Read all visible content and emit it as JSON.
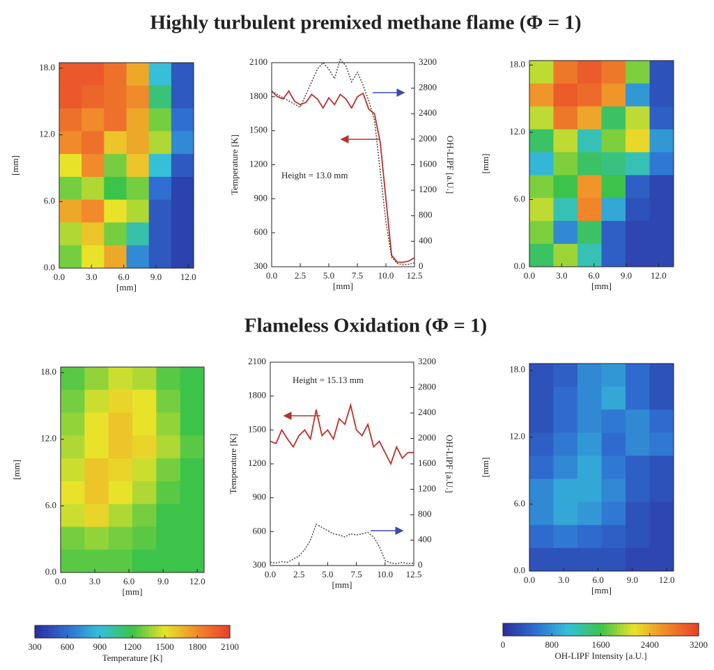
{
  "headings": [
    "Highly turbulent premixed methane flame (Φ = 1)",
    "Flameless Oxidation (Φ = 1)"
  ],
  "chart_data": [
    {
      "type": "heatmap",
      "xlabel": "[mm]",
      "ylabel": "[mm]",
      "xlim": [
        0,
        12.5
      ],
      "ylim": [
        0,
        18.5
      ],
      "xticks": [
        {
          "value": 0,
          "label": "0.0"
        },
        {
          "value": 3,
          "label": "3.0"
        },
        {
          "value": 6,
          "label": "6.0"
        },
        {
          "value": 9,
          "label": "9.0"
        },
        {
          "value": 12,
          "label": "12.0"
        }
      ],
      "yticks": [
        {
          "value": 0,
          "label": "0.0"
        },
        {
          "value": 6,
          "label": "6.0"
        },
        {
          "value": 12,
          "label": "12.0"
        },
        {
          "value": 18,
          "label": "18.0"
        }
      ],
      "clim": [
        300,
        2100
      ],
      "colors": [
        "#2b2d9c",
        "#2f6fd1",
        "#35c0d8",
        "#3cc34a",
        "#e8e32a",
        "#f08a2a",
        "#e8402a"
      ],
      "z": [
        [
          2000,
          2000,
          1900,
          1700,
          900,
          500
        ],
        [
          2000,
          1950,
          1900,
          1800,
          1100,
          500
        ],
        [
          1900,
          1800,
          1900,
          1700,
          1300,
          600
        ],
        [
          1800,
          1900,
          1600,
          1700,
          1400,
          700
        ],
        [
          1500,
          1800,
          1300,
          1600,
          900,
          500
        ],
        [
          1300,
          1400,
          1200,
          1300,
          600,
          400
        ],
        [
          1700,
          1800,
          1500,
          1400,
          500,
          400
        ],
        [
          1400,
          1600,
          1300,
          1000,
          500,
          400
        ],
        [
          1300,
          1500,
          1700,
          700,
          500,
          400
        ]
      ]
    },
    {
      "type": "line",
      "xlabel": "[mm]",
      "ylabel": "Temperature [K]",
      "y2label": "OH-LIPF [a.U.]",
      "annotation": "Height = 13.0 mm",
      "xlim": [
        0,
        12.5
      ],
      "ylim": [
        300,
        2100
      ],
      "y2lim": [
        0,
        3200
      ],
      "xticks": [
        {
          "value": 0,
          "label": "0.0"
        },
        {
          "value": 2.5,
          "label": "2.5"
        },
        {
          "value": 5,
          "label": "5.0"
        },
        {
          "value": 7.5,
          "label": "7.5"
        },
        {
          "value": 10,
          "label": "10.0"
        },
        {
          "value": 12.5,
          "label": "12.5"
        }
      ],
      "yticks": [
        300,
        600,
        900,
        1200,
        1500,
        1800,
        2100
      ],
      "y2ticks": [
        0,
        400,
        800,
        1200,
        1600,
        2000,
        2400,
        2800,
        3200
      ],
      "x": [
        0,
        0.5,
        1,
        1.5,
        2,
        2.5,
        3,
        3.5,
        4,
        4.5,
        5,
        5.5,
        6,
        6.5,
        7,
        7.5,
        8,
        8.5,
        9,
        9.5,
        10,
        10.5,
        11,
        11.5,
        12,
        12.5
      ],
      "series": [
        {
          "color": "#b8322a",
          "values": [
            1850,
            1800,
            1780,
            1850,
            1760,
            1730,
            1750,
            1820,
            1780,
            1700,
            1790,
            1730,
            1820,
            1780,
            1700,
            1800,
            1830,
            1690,
            1650,
            1400,
            900,
            400,
            340,
            340,
            350,
            380
          ]
        },
        {
          "color": "#444444",
          "dash": true,
          "axis": "y2",
          "values": [
            2750,
            2700,
            2650,
            2600,
            2550,
            2500,
            2700,
            2900,
            3100,
            3200,
            3100,
            2950,
            3250,
            3150,
            2900,
            3050,
            2850,
            2600,
            2300,
            1500,
            700,
            150,
            50,
            30,
            40,
            60
          ]
        }
      ]
    },
    {
      "type": "heatmap",
      "xlabel": "[mm]",
      "ylabel": "[mm]",
      "xlim": [
        0,
        13.4
      ],
      "ylim": [
        0,
        18.4
      ],
      "xticks": [
        {
          "value": 0,
          "label": "0.0"
        },
        {
          "value": 3,
          "label": "3.0"
        },
        {
          "value": 6,
          "label": "6.0"
        },
        {
          "value": 9,
          "label": "9.0"
        },
        {
          "value": 12,
          "label": "12.0"
        }
      ],
      "yticks": [
        {
          "value": 0,
          "label": "0.0"
        },
        {
          "value": 6,
          "label": "6.0"
        },
        {
          "value": 12,
          "label": "12.0"
        },
        {
          "value": 18,
          "label": "18.0"
        }
      ],
      "clim": [
        0,
        3200
      ],
      "colors": [
        "#2b2d9c",
        "#2f6fd1",
        "#35c0d8",
        "#3cc34a",
        "#e8e32a",
        "#f08a2a",
        "#e8402a"
      ],
      "z": [
        [
          2000,
          2800,
          3000,
          2800,
          1800,
          300
        ],
        [
          2600,
          3000,
          2900,
          2600,
          800,
          300
        ],
        [
          2000,
          2800,
          2500,
          1500,
          2000,
          400
        ],
        [
          1500,
          2000,
          1200,
          1800,
          2200,
          800
        ],
        [
          1000,
          1800,
          1500,
          1400,
          1200,
          600
        ],
        [
          1800,
          1600,
          2600,
          1600,
          400,
          200
        ],
        [
          2000,
          1200,
          2700,
          900,
          300,
          200
        ],
        [
          1800,
          700,
          1500,
          400,
          200,
          200
        ],
        [
          1500,
          1900,
          1200,
          400,
          200,
          200
        ]
      ]
    },
    {
      "type": "heatmap",
      "xlabel": "[mm]",
      "ylabel": "[mm]",
      "xlim": [
        0,
        12.6
      ],
      "ylim": [
        0,
        18.5
      ],
      "xticks": [
        {
          "value": 0,
          "label": "0.0"
        },
        {
          "value": 3,
          "label": "3.0"
        },
        {
          "value": 6,
          "label": "6.0"
        },
        {
          "value": 9,
          "label": "9.0"
        },
        {
          "value": 12,
          "label": "12.0"
        }
      ],
      "yticks": [
        {
          "value": 0,
          "label": "0.0"
        },
        {
          "value": 6,
          "label": "6.0"
        },
        {
          "value": 12,
          "label": "12.0"
        },
        {
          "value": 18,
          "label": "18.0"
        }
      ],
      "clim": [
        300,
        2100
      ],
      "colors": [
        "#2b2d9c",
        "#2f6fd1",
        "#35c0d8",
        "#3cc34a",
        "#e8e32a",
        "#f08a2a",
        "#e8402a"
      ],
      "z": [
        [
          1250,
          1350,
          1450,
          1400,
          1250,
          1200
        ],
        [
          1300,
          1450,
          1550,
          1500,
          1300,
          1200
        ],
        [
          1350,
          1500,
          1600,
          1500,
          1350,
          1200
        ],
        [
          1400,
          1500,
          1600,
          1550,
          1400,
          1250
        ],
        [
          1450,
          1600,
          1550,
          1450,
          1300,
          1200
        ],
        [
          1500,
          1600,
          1500,
          1400,
          1250,
          1200
        ],
        [
          1450,
          1550,
          1400,
          1300,
          1200,
          1200
        ],
        [
          1300,
          1350,
          1300,
          1250,
          1200,
          1200
        ],
        [
          1250,
          1250,
          1250,
          1200,
          1200,
          1200
        ]
      ]
    },
    {
      "type": "line",
      "xlabel": "[mm]",
      "ylabel": "Temperature [K]",
      "y2label": "OH-LIPF [a.U.]",
      "annotation": "Height = 15.13 mm",
      "xlim": [
        0,
        12.5
      ],
      "ylim": [
        300,
        2100
      ],
      "y2lim": [
        0,
        3200
      ],
      "xticks": [
        {
          "value": 0,
          "label": "0.0"
        },
        {
          "value": 2.5,
          "label": "2.5"
        },
        {
          "value": 5,
          "label": "5.0"
        },
        {
          "value": 7.5,
          "label": "7.5"
        },
        {
          "value": 10,
          "label": "10.0"
        },
        {
          "value": 12.5,
          "label": "12.5"
        }
      ],
      "yticks": [
        300,
        600,
        900,
        1200,
        1500,
        1800,
        2100
      ],
      "y2ticks": [
        0,
        400,
        800,
        1200,
        1600,
        2000,
        2400,
        2800,
        3200
      ],
      "x": [
        0,
        0.5,
        1,
        1.5,
        2,
        2.5,
        3,
        3.5,
        4,
        4.5,
        5,
        5.5,
        6,
        6.5,
        7,
        7.5,
        8,
        8.5,
        9,
        9.5,
        10,
        10.5,
        11,
        11.5,
        12,
        12.5
      ],
      "series": [
        {
          "color": "#b8322a",
          "values": [
            1400,
            1380,
            1500,
            1420,
            1350,
            1450,
            1500,
            1420,
            1680,
            1450,
            1500,
            1420,
            1600,
            1550,
            1720,
            1500,
            1450,
            1550,
            1350,
            1400,
            1300,
            1200,
            1350,
            1250,
            1300,
            1300
          ]
        },
        {
          "color": "#444444",
          "dash": true,
          "axis": "y2",
          "values": [
            50,
            40,
            60,
            50,
            100,
            150,
            250,
            400,
            650,
            600,
            550,
            500,
            480,
            450,
            500,
            480,
            500,
            520,
            450,
            300,
            80,
            40,
            30,
            50,
            30,
            40
          ]
        }
      ]
    },
    {
      "type": "heatmap",
      "xlabel": "[mm]",
      "ylabel": "[mm]",
      "xlim": [
        0,
        12.6
      ],
      "ylim": [
        0,
        18.6
      ],
      "xticks": [
        {
          "value": 0,
          "label": "0.0"
        },
        {
          "value": 3,
          "label": "3.0"
        },
        {
          "value": 6,
          "label": "6.0"
        },
        {
          "value": 9,
          "label": "9.0"
        },
        {
          "value": 12,
          "label": "12.0"
        }
      ],
      "yticks": [
        {
          "value": 0,
          "label": "0.0"
        },
        {
          "value": 6,
          "label": "6.0"
        },
        {
          "value": 12,
          "label": "12.0"
        },
        {
          "value": 18,
          "label": "18.0"
        }
      ],
      "clim": [
        0,
        3200
      ],
      "colors": [
        "#2b2d9c",
        "#2f6fd1",
        "#35c0d8",
        "#3cc34a",
        "#e8e32a",
        "#f08a2a",
        "#e8402a"
      ],
      "z": [
        [
          300,
          400,
          700,
          800,
          500,
          300
        ],
        [
          300,
          500,
          700,
          900,
          500,
          300
        ],
        [
          300,
          500,
          700,
          600,
          700,
          500
        ],
        [
          400,
          600,
          800,
          500,
          700,
          600
        ],
        [
          500,
          700,
          900,
          600,
          400,
          300
        ],
        [
          700,
          900,
          900,
          700,
          400,
          300
        ],
        [
          700,
          900,
          800,
          600,
          300,
          200
        ],
        [
          500,
          600,
          500,
          400,
          300,
          200
        ],
        [
          300,
          300,
          300,
          300,
          200,
          200
        ]
      ]
    },
    {
      "type": "colorbar",
      "xlabel": "Temperature [K]",
      "xlim": [
        300,
        2100
      ],
      "xticks": [
        300,
        600,
        900,
        1200,
        1500,
        1800,
        2100
      ],
      "colors": [
        "#2b2d9c",
        "#2f6fd1",
        "#35c0d8",
        "#3cc34a",
        "#e8e32a",
        "#f08a2a",
        "#e8402a"
      ]
    },
    {
      "type": "colorbar",
      "xlabel": "OH-LIPF Intensity [a.U.]",
      "xlim": [
        0,
        3200
      ],
      "xticks": [
        0,
        800,
        1600,
        2400,
        3200
      ],
      "colors": [
        "#2b2d9c",
        "#2f6fd1",
        "#35c0d8",
        "#3cc34a",
        "#e8e32a",
        "#f08a2a",
        "#e8402a"
      ]
    }
  ]
}
